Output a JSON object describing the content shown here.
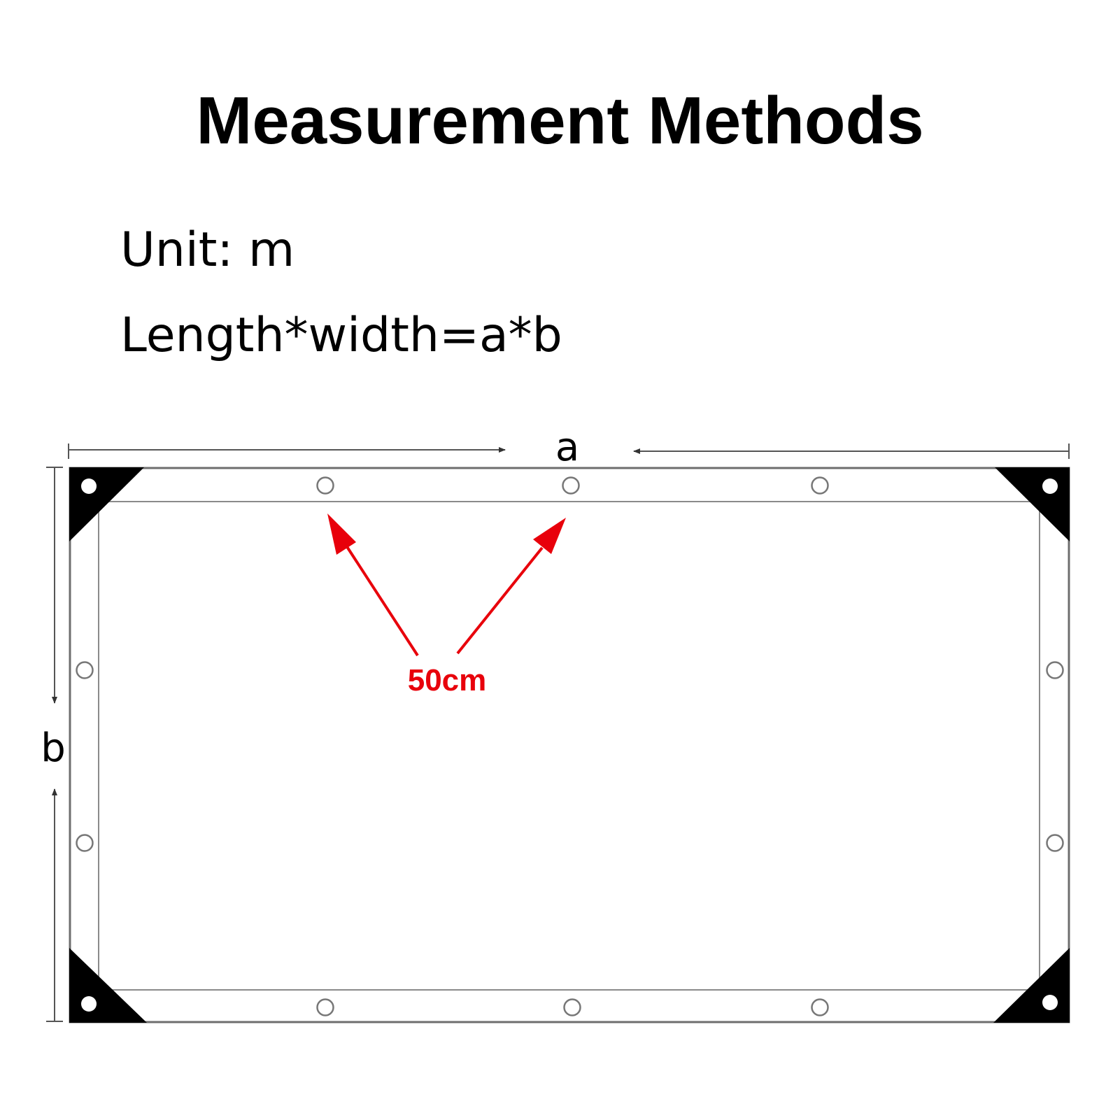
{
  "title": "Measurement Methods",
  "unit_text": "Unit: m",
  "formula_text": "Length*width=a*b",
  "diagram": {
    "length_label": "a",
    "width_label": "b",
    "spacing_label": "50cm",
    "accent_color": "#e8000b",
    "line_color": "#7a7a7a",
    "corner_color": "#000000"
  }
}
